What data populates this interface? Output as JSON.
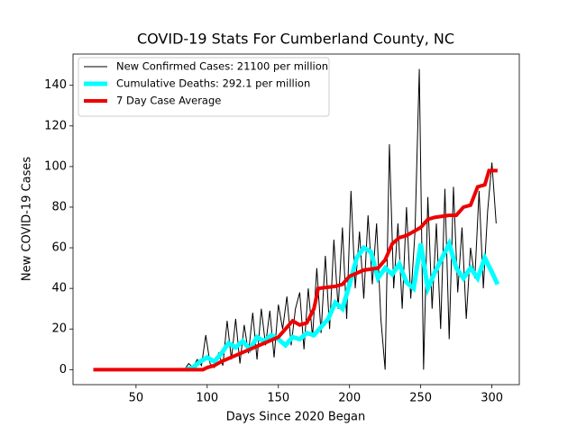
{
  "chart_data": {
    "type": "line",
    "title": "COVID-19 Stats For Cumberland County, NC",
    "xlabel": "Days Since 2020 Began",
    "ylabel": "New COVID-19 Cases",
    "xlim": [
      5.75,
      319.25
    ],
    "xticks": [
      50,
      100,
      150,
      200,
      250,
      300
    ],
    "ylim": [
      -7.4,
      155.4
    ],
    "yticks": [
      0,
      20,
      40,
      60,
      80,
      100,
      120,
      140
    ],
    "grid": false,
    "legend": "upper left",
    "series": [
      {
        "name": "New Confirmed Cases: 21100 per million",
        "color": "#000000",
        "width": 1,
        "x": [
          84,
          87,
          90,
          93,
          96,
          99,
          102,
          105,
          108,
          111,
          114,
          117,
          120,
          123,
          126,
          129,
          132,
          135,
          138,
          141,
          144,
          147,
          150,
          153,
          156,
          159,
          162,
          165,
          168,
          171,
          174,
          177,
          180,
          183,
          186,
          189,
          192,
          195,
          198,
          201,
          204,
          207,
          210,
          213,
          216,
          219,
          222,
          225,
          228,
          231,
          234,
          237,
          240,
          243,
          246,
          249,
          252,
          255,
          258,
          261,
          264,
          267,
          270,
          273,
          276,
          279,
          282,
          285,
          288,
          291,
          294,
          297,
          300,
          303
        ],
        "values": [
          0,
          3,
          1,
          5,
          2,
          17,
          3,
          1,
          8,
          2,
          24,
          5,
          25,
          3,
          22,
          8,
          28,
          5,
          30,
          12,
          29,
          6,
          32,
          20,
          36,
          12,
          30,
          38,
          10,
          40,
          16,
          50,
          18,
          56,
          20,
          64,
          30,
          70,
          25,
          88,
          40,
          68,
          35,
          76,
          42,
          72,
          25,
          0,
          111,
          40,
          72,
          30,
          80,
          35,
          68,
          148,
          0,
          85,
          30,
          72,
          20,
          89,
          15,
          90,
          38,
          70,
          25,
          60,
          45,
          88,
          40,
          78,
          102,
          72
        ]
      },
      {
        "name": "Cumulative Deaths: 292.1 per million",
        "color": "#00ffff",
        "width": 5,
        "x": [
          85,
          90,
          95,
          100,
          105,
          110,
          115,
          120,
          125,
          130,
          135,
          140,
          145,
          150,
          155,
          160,
          165,
          170,
          175,
          180,
          185,
          190,
          195,
          200,
          205,
          210,
          215,
          220,
          225,
          230,
          235,
          240,
          245,
          250,
          255,
          260,
          265,
          270,
          275,
          280,
          285,
          290,
          295,
          300,
          304
        ],
        "values": [
          0,
          1,
          4,
          6,
          4,
          8,
          13,
          11,
          14,
          10,
          16,
          14,
          17,
          15,
          12,
          16,
          15,
          18,
          17,
          21,
          25,
          33,
          30,
          42,
          55,
          60,
          58,
          45,
          50,
          47,
          52,
          43,
          40,
          62,
          40,
          48,
          55,
          62,
          50,
          45,
          50,
          45,
          55,
          48,
          42
        ]
      },
      {
        "name": "7 Day Case Average",
        "color": "#ee0000",
        "width": 4,
        "x": [
          20,
          80,
          97,
          100,
          105,
          110,
          120,
          130,
          140,
          150,
          155,
          160,
          165,
          170,
          175,
          178,
          190,
          195,
          200,
          210,
          220,
          225,
          230,
          235,
          240,
          250,
          255,
          260,
          270,
          275,
          280,
          285,
          290,
          295,
          298,
          304
        ],
        "values": [
          0,
          0,
          0,
          1,
          2,
          4,
          7,
          10,
          13,
          16,
          20,
          24,
          22,
          23,
          30,
          40,
          41,
          42,
          46,
          49,
          50,
          54,
          62,
          65,
          66,
          70,
          74,
          75,
          76,
          76,
          80,
          81,
          90,
          91,
          98,
          98
        ]
      }
    ]
  }
}
